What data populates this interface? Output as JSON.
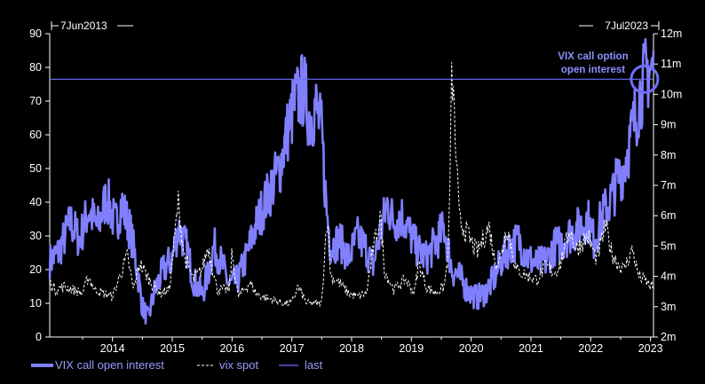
{
  "chart_data": {
    "type": "line",
    "start_label": "7Jun2013",
    "end_label": "7Jul2023",
    "annotation": [
      "VIX call option",
      "open interest"
    ],
    "left_axis": {
      "ticks": [
        0,
        10,
        20,
        30,
        40,
        50,
        60,
        70,
        80,
        90
      ],
      "ylim": [
        0,
        90
      ]
    },
    "right_axis": {
      "ticks": [
        "2m",
        "3m",
        "4m",
        "5m",
        "6m",
        "7m",
        "8m",
        "9m",
        "10m",
        "11m",
        "12m"
      ],
      "ylim": [
        2000000,
        12000000
      ]
    },
    "x_ticks": [
      "2014",
      "2015",
      "2016",
      "2017",
      "2018",
      "2019",
      "2020",
      "2021",
      "2022",
      "2023"
    ],
    "xlim": [
      2013.45,
      2023.55
    ],
    "series": [
      {
        "name": "VIX call open interest",
        "axis": "right",
        "color": "#8080ff",
        "points": [
          [
            2013.45,
            4500000.0
          ],
          [
            2013.6,
            4800000.0
          ],
          [
            2013.8,
            5800000.0
          ],
          [
            2013.95,
            5200000.0
          ],
          [
            2014.1,
            6200000.0
          ],
          [
            2014.25,
            5600000.0
          ],
          [
            2014.4,
            6600000.0
          ],
          [
            2014.55,
            5700000.0
          ],
          [
            2014.65,
            6400000.0
          ],
          [
            2014.8,
            5500000.0
          ],
          [
            2014.9,
            4400000.0
          ],
          [
            2015.0,
            3000000.0
          ],
          [
            2015.1,
            2600000.0
          ],
          [
            2015.2,
            3500000.0
          ],
          [
            2015.35,
            4200000.0
          ],
          [
            2015.5,
            4600000.0
          ],
          [
            2015.6,
            5600000.0
          ],
          [
            2015.75,
            4900000.0
          ],
          [
            2015.85,
            3900000.0
          ],
          [
            2016.0,
            3400000.0
          ],
          [
            2016.1,
            4100000.0
          ],
          [
            2016.2,
            5000000.0
          ],
          [
            2016.35,
            4300000.0
          ],
          [
            2016.45,
            3700000.0
          ],
          [
            2016.6,
            3900000.0
          ],
          [
            2016.75,
            4700000.0
          ],
          [
            2016.85,
            5400000.0
          ],
          [
            2017.0,
            6200000.0
          ],
          [
            2017.15,
            6900000.0
          ],
          [
            2017.3,
            7600000.0
          ],
          [
            2017.45,
            9000000.0
          ],
          [
            2017.55,
            9700000.0
          ],
          [
            2017.7,
            10200000.0
          ],
          [
            2017.8,
            9200000.0
          ],
          [
            2017.9,
            9600000.0
          ],
          [
            2018.0,
            8700000.0
          ],
          [
            2018.08,
            6200000.0
          ],
          [
            2018.15,
            5000000.0
          ],
          [
            2018.3,
            5200000.0
          ],
          [
            2018.45,
            4600000.0
          ],
          [
            2018.6,
            5300000.0
          ],
          [
            2018.75,
            4900000.0
          ],
          [
            2018.85,
            4300000.0
          ],
          [
            2019.0,
            5600000.0
          ],
          [
            2019.1,
            6400000.0
          ],
          [
            2019.2,
            5800000.0
          ],
          [
            2019.35,
            6000000.0
          ],
          [
            2019.5,
            5300000.0
          ],
          [
            2019.6,
            4900000.0
          ],
          [
            2019.75,
            4600000.0
          ],
          [
            2019.9,
            5100000.0
          ],
          [
            2020.05,
            5600000.0
          ],
          [
            2020.18,
            4200000.0
          ],
          [
            2020.3,
            4000000.0
          ],
          [
            2020.45,
            3500000.0
          ],
          [
            2020.6,
            3300000.0
          ],
          [
            2020.75,
            3500000.0
          ],
          [
            2020.9,
            4000000.0
          ],
          [
            2021.0,
            4500000.0
          ],
          [
            2021.15,
            5000000.0
          ],
          [
            2021.3,
            5200000.0
          ],
          [
            2021.45,
            4600000.0
          ],
          [
            2021.6,
            4400000.0
          ],
          [
            2021.75,
            4500000.0
          ],
          [
            2021.9,
            5000000.0
          ],
          [
            2022.0,
            5100000.0
          ],
          [
            2022.15,
            5400000.0
          ],
          [
            2022.3,
            5600000.0
          ],
          [
            2022.45,
            5900000.0
          ],
          [
            2022.55,
            5200000.0
          ],
          [
            2022.7,
            6000000.0
          ],
          [
            2022.85,
            6600000.0
          ],
          [
            2022.95,
            7200000.0
          ],
          [
            2023.05,
            7600000.0
          ],
          [
            2023.15,
            8400000.0
          ],
          [
            2023.25,
            9300000.0
          ],
          [
            2023.35,
            10200000.0
          ],
          [
            2023.45,
            10800000.0
          ]
        ]
      },
      {
        "name": "vix spot",
        "axis": "left",
        "color": "#ffffff",
        "points": [
          [
            2013.45,
            16
          ],
          [
            2013.55,
            14
          ],
          [
            2013.7,
            15
          ],
          [
            2013.85,
            14
          ],
          [
            2014.0,
            13
          ],
          [
            2014.1,
            18
          ],
          [
            2014.2,
            14
          ],
          [
            2014.35,
            13
          ],
          [
            2014.5,
            12
          ],
          [
            2014.6,
            17
          ],
          [
            2014.75,
            24
          ],
          [
            2014.85,
            14
          ],
          [
            2014.95,
            22
          ],
          [
            2015.05,
            19
          ],
          [
            2015.15,
            16
          ],
          [
            2015.3,
            13
          ],
          [
            2015.45,
            14
          ],
          [
            2015.6,
            40
          ],
          [
            2015.7,
            24
          ],
          [
            2015.85,
            17
          ],
          [
            2016.0,
            20
          ],
          [
            2016.1,
            27
          ],
          [
            2016.25,
            14
          ],
          [
            2016.45,
            14
          ],
          [
            2016.5,
            25
          ],
          [
            2016.6,
            12
          ],
          [
            2016.8,
            16
          ],
          [
            2016.9,
            13
          ],
          [
            2017.0,
            12
          ],
          [
            2017.2,
            11
          ],
          [
            2017.35,
            10
          ],
          [
            2017.5,
            10
          ],
          [
            2017.6,
            15
          ],
          [
            2017.75,
            10
          ],
          [
            2017.9,
            10
          ],
          [
            2018.0,
            10
          ],
          [
            2018.09,
            37
          ],
          [
            2018.15,
            18
          ],
          [
            2018.3,
            16
          ],
          [
            2018.45,
            13
          ],
          [
            2018.6,
            12
          ],
          [
            2018.75,
            13
          ],
          [
            2018.85,
            25
          ],
          [
            2018.98,
            36
          ],
          [
            2019.05,
            20
          ],
          [
            2019.2,
            14
          ],
          [
            2019.4,
            17
          ],
          [
            2019.55,
            13
          ],
          [
            2019.62,
            22
          ],
          [
            2019.75,
            15
          ],
          [
            2019.9,
            13
          ],
          [
            2020.05,
            15
          ],
          [
            2020.12,
            25
          ],
          [
            2020.18,
            80
          ],
          [
            2020.23,
            60
          ],
          [
            2020.3,
            35
          ],
          [
            2020.45,
            30
          ],
          [
            2020.6,
            25
          ],
          [
            2020.8,
            33
          ],
          [
            2020.9,
            22
          ],
          [
            2021.0,
            24
          ],
          [
            2021.1,
            33
          ],
          [
            2021.25,
            20
          ],
          [
            2021.45,
            18
          ],
          [
            2021.6,
            17
          ],
          [
            2021.75,
            21
          ],
          [
            2021.9,
            19
          ],
          [
            2022.0,
            22
          ],
          [
            2022.15,
            32
          ],
          [
            2022.25,
            26
          ],
          [
            2022.45,
            30
          ],
          [
            2022.6,
            23
          ],
          [
            2022.75,
            33
          ],
          [
            2022.85,
            25
          ],
          [
            2022.95,
            22
          ],
          [
            2023.05,
            20
          ],
          [
            2023.2,
            26
          ],
          [
            2023.3,
            18
          ],
          [
            2023.4,
            17
          ],
          [
            2023.5,
            15
          ]
        ]
      },
      {
        "name": "last",
        "axis": "right",
        "color": "#6e6eff",
        "value": 10500000.0
      }
    ]
  }
}
